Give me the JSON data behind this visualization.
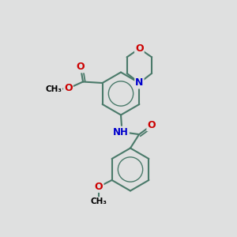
{
  "background_color": "#dfe0e0",
  "bond_color": "#4a7a6a",
  "bond_width": 1.5,
  "atom_colors": {
    "O": "#cc0000",
    "N": "#0000cc",
    "C": "#000000"
  },
  "font_size": 8,
  "figsize": [
    3.0,
    3.0
  ],
  "dpi": 100,
  "xlim": [
    0,
    10
  ],
  "ylim": [
    0,
    10
  ]
}
